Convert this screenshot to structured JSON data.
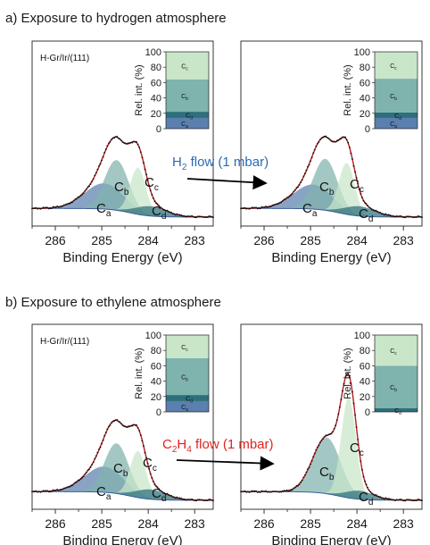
{
  "colors": {
    "Ca": "#5b7fae",
    "Cb": "#7fb3ad",
    "Cc": "#c9e6c8",
    "Cd": "#2d6f7d",
    "envelope": "#b31f1f",
    "data_points": "#111111",
    "h2_text": "#2b6bb5",
    "c2h4_text": "#e0221e"
  },
  "sections": [
    {
      "title": "a) Exposure to hydrogen atmosphere",
      "flow_label": {
        "main": "H",
        "sub": "2",
        "rest": " flow (1 mbar)"
      },
      "flow_color_key": "h2_text"
    },
    {
      "title": "b) Exposure to ethylene atmosphere",
      "flow_label": {
        "main": "C",
        "sub": "2",
        "main2": "H",
        "sub2": "4",
        "rest": " flow (1 mbar)"
      },
      "flow_color_key": "c2h4_text"
    }
  ],
  "chart_data": [
    {
      "type": "area",
      "panel": "a-left",
      "sample_label": "H-Gr/Ir/(111)",
      "xlabel": "Binding Energy (eV)",
      "xlim": [
        286.5,
        282.6
      ],
      "xticks": [
        "286",
        "285",
        "284",
        "283"
      ],
      "xtick_values": [
        286,
        285,
        284,
        283
      ],
      "series": [
        {
          "name": "Ca",
          "label": "C",
          "sub": "a",
          "center": 284.95,
          "amplitude": 0.21,
          "width": 0.42
        },
        {
          "name": "Cb",
          "label": "C",
          "sub": "b",
          "center": 284.68,
          "amplitude": 0.41,
          "width": 0.26
        },
        {
          "name": "Cc",
          "label": "C",
          "sub": "c",
          "center": 284.22,
          "amplitude": 0.38,
          "width": 0.17
        },
        {
          "name": "Cd",
          "label": "C",
          "sub": "d",
          "center": 283.95,
          "amplitude": 0.08,
          "width": 0.33
        }
      ],
      "inset": {
        "ylabel": "Rel. int. (%)",
        "yticks": [
          "0",
          "20",
          "40",
          "60",
          "80",
          "100"
        ],
        "ytick_values": [
          0,
          20,
          40,
          60,
          80,
          100
        ],
        "stack": [
          {
            "name": "Ca",
            "label": "C",
            "sub": "a",
            "value": 14
          },
          {
            "name": "Cd",
            "label": "C",
            "sub": "d",
            "value": 8
          },
          {
            "name": "Cb",
            "label": "C",
            "sub": "b",
            "value": 42
          },
          {
            "name": "Cc",
            "label": "C",
            "sub": "c",
            "value": 36
          }
        ]
      }
    },
    {
      "type": "area",
      "panel": "a-right",
      "sample_label": "",
      "xlabel": "Binding Energy (eV)",
      "xlim": [
        286.5,
        282.6
      ],
      "xticks": [
        "286",
        "285",
        "284",
        "283"
      ],
      "xtick_values": [
        286,
        285,
        284,
        283
      ],
      "series": [
        {
          "name": "Ca",
          "label": "C",
          "sub": "a",
          "center": 284.95,
          "amplitude": 0.2,
          "width": 0.42
        },
        {
          "name": "Cb",
          "label": "C",
          "sub": "b",
          "center": 284.68,
          "amplitude": 0.42,
          "width": 0.26
        },
        {
          "name": "Cc",
          "label": "C",
          "sub": "c",
          "center": 284.22,
          "amplitude": 0.42,
          "width": 0.17
        },
        {
          "name": "Cd",
          "label": "C",
          "sub": "d",
          "center": 283.95,
          "amplitude": 0.08,
          "width": 0.33
        }
      ],
      "inset": {
        "ylabel": "Rel. int. (%)",
        "yticks": [
          "0",
          "20",
          "40",
          "60",
          "80",
          "100"
        ],
        "ytick_values": [
          0,
          20,
          40,
          60,
          80,
          100
        ],
        "stack": [
          {
            "name": "Ca",
            "label": "C",
            "sub": "a",
            "value": 14
          },
          {
            "name": "Cd",
            "label": "C",
            "sub": "d",
            "value": 7
          },
          {
            "name": "Cb",
            "label": "C",
            "sub": "b",
            "value": 44
          },
          {
            "name": "Cc",
            "label": "C",
            "sub": "c",
            "value": 35
          }
        ]
      }
    },
    {
      "type": "area",
      "panel": "b-left",
      "sample_label": "H-Gr/Ir/(111)",
      "xlabel": "Binding Energy (eV)",
      "xlim": [
        286.5,
        282.6
      ],
      "xticks": [
        "286",
        "285",
        "284",
        "283"
      ],
      "xtick_values": [
        286,
        285,
        284,
        283
      ],
      "series": [
        {
          "name": "Ca",
          "label": "C",
          "sub": "a",
          "center": 284.95,
          "amplitude": 0.21,
          "width": 0.42
        },
        {
          "name": "Cb",
          "label": "C",
          "sub": "b",
          "center": 284.68,
          "amplitude": 0.41,
          "width": 0.26
        },
        {
          "name": "Cc",
          "label": "C",
          "sub": "c",
          "center": 284.22,
          "amplitude": 0.38,
          "width": 0.17
        },
        {
          "name": "Cd",
          "label": "C",
          "sub": "d",
          "center": 283.95,
          "amplitude": 0.08,
          "width": 0.33
        }
      ],
      "inset": {
        "ylabel": "Rel. int. (%)",
        "yticks": [
          "0",
          "20",
          "40",
          "60",
          "80",
          "100"
        ],
        "ytick_values": [
          0,
          20,
          40,
          60,
          80,
          100
        ],
        "stack": [
          {
            "name": "Ca",
            "label": "C",
            "sub": "a",
            "value": 14
          },
          {
            "name": "Cd",
            "label": "C",
            "sub": "d",
            "value": 8
          },
          {
            "name": "Cb",
            "label": "C",
            "sub": "b",
            "value": 48
          },
          {
            "name": "Cc",
            "label": "C",
            "sub": "c",
            "value": 30
          }
        ]
      }
    },
    {
      "type": "area",
      "panel": "b-right",
      "sample_label": "",
      "xlabel": "Binding Energy (eV)",
      "xlim": [
        286.5,
        282.6
      ],
      "xticks": [
        "286",
        "285",
        "284",
        "283"
      ],
      "xtick_values": [
        286,
        285,
        284,
        283
      ],
      "series": [
        {
          "name": "Cb",
          "label": "C",
          "sub": "b",
          "center": 284.65,
          "amplitude": 0.46,
          "width": 0.3
        },
        {
          "name": "Cc",
          "label": "C",
          "sub": "c",
          "center": 284.18,
          "amplitude": 0.82,
          "width": 0.16
        },
        {
          "name": "Cd",
          "label": "C",
          "sub": "d",
          "center": 283.95,
          "amplitude": 0.07,
          "width": 0.3
        }
      ],
      "inset": {
        "ylabel": "Rel. int. (%)",
        "yticks": [
          "0",
          "20",
          "40",
          "60",
          "80",
          "100"
        ],
        "ytick_values": [
          0,
          20,
          40,
          60,
          80,
          100
        ],
        "stack": [
          {
            "name": "Cd",
            "label": "C",
            "sub": "d",
            "value": 5
          },
          {
            "name": "Cb",
            "label": "C",
            "sub": "b",
            "value": 55
          },
          {
            "name": "Cc",
            "label": "C",
            "sub": "c",
            "value": 40
          }
        ]
      }
    }
  ]
}
